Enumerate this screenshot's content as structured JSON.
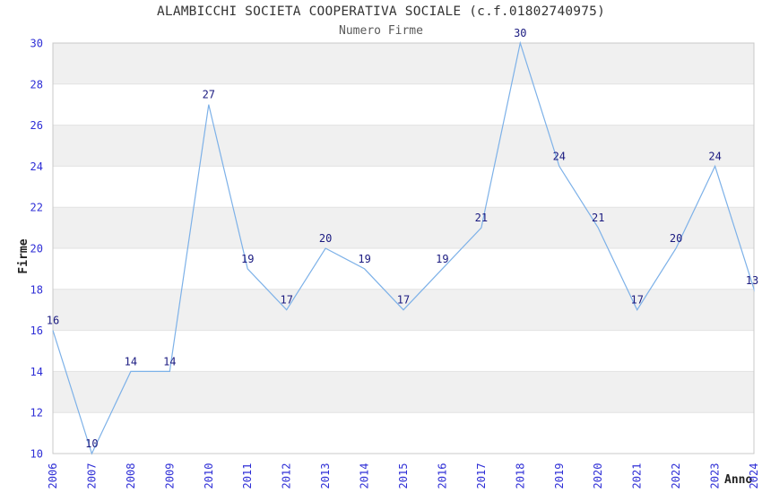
{
  "chart_data": {
    "type": "line",
    "title": "ALAMBICCHI SOCIETA COOPERATIVA SOCIALE (c.f.01802740975)",
    "subtitle": "Numero Firme",
    "xlabel": "Anno",
    "ylabel": "Firme",
    "categories": [
      "2006",
      "2007",
      "2008",
      "2009",
      "2010",
      "2011",
      "2012",
      "2013",
      "2014",
      "2015",
      "2016",
      "2017",
      "2018",
      "2019",
      "2020",
      "2021",
      "2022",
      "2023",
      "2024"
    ],
    "values": [
      16,
      10,
      14,
      14,
      27,
      19,
      17,
      20,
      19,
      17,
      19,
      21,
      30,
      24,
      21,
      17,
      20,
      24,
      13
    ],
    "ylim": [
      10,
      30
    ],
    "ytick_step": 2,
    "yticks": [
      10,
      12,
      14,
      16,
      18,
      20,
      22,
      24,
      26,
      28,
      30
    ],
    "legend": "none",
    "grid": "alternating-horizontal-bands",
    "point_labels_visible": true,
    "last_point_clipped_at_right_edge": true,
    "colors": {
      "line": "#7db1e8",
      "data_label": "#1a1a80",
      "tick_label": "#2e2ed6",
      "band": "#f0f0f0",
      "gridline": "#e2e2e2",
      "border": "#c8c8c8",
      "title": "#333333",
      "subtitle": "#595959",
      "axis_label": "#222222",
      "background": "#ffffff"
    }
  }
}
